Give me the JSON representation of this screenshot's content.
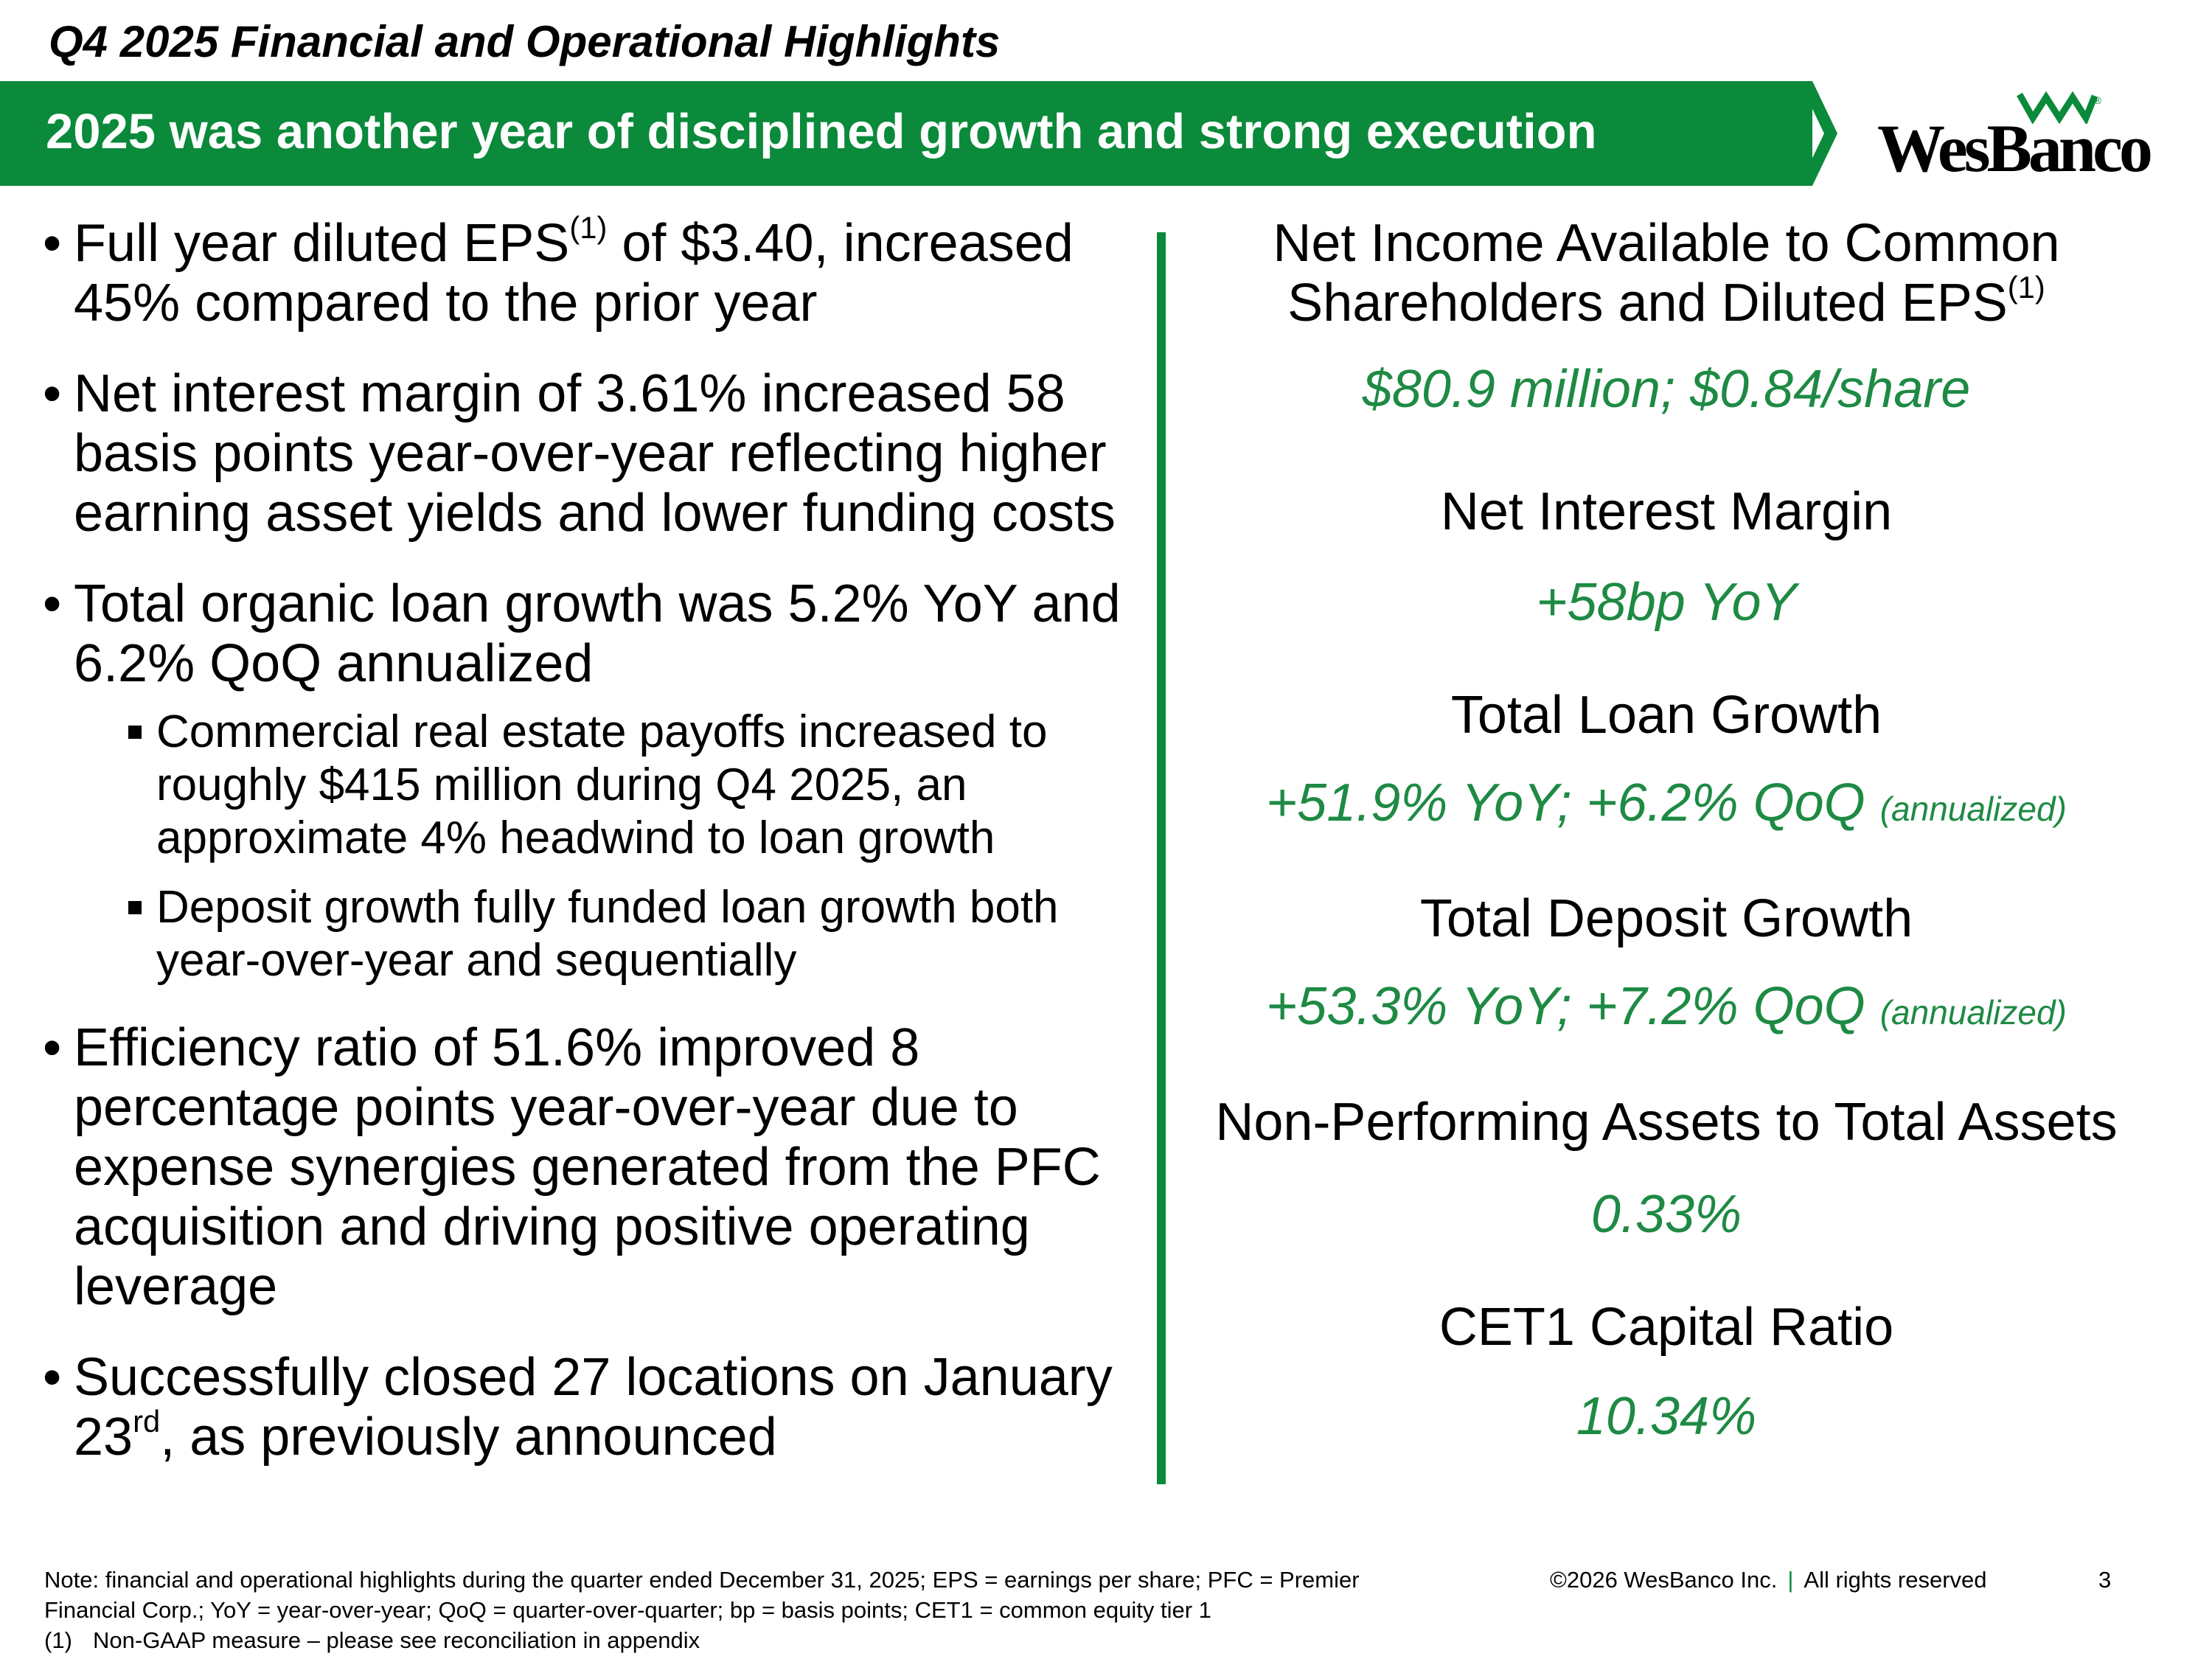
{
  "header": {
    "section_title": "Q4 2025 Financial and Operational Highlights",
    "banner_text": "2025 was another year of disciplined growth and strong execution",
    "logo_text": "WesBanco",
    "logo_registered": "®"
  },
  "colors": {
    "brand_green": "#0a8a3a",
    "value_green": "#1e8a44"
  },
  "left_bullets": {
    "b1": {
      "pre": "Full year diluted EPS",
      "sup": "(1)",
      "post": " of $3.40, increased 45% compared to the prior year"
    },
    "b2": {
      "text": "Net interest margin of 3.61% increased 58 basis points year-over-year reflecting higher earning asset yields and lower funding costs"
    },
    "b3": {
      "text": "Total organic loan growth was 5.2% YoY and 6.2% QoQ annualized"
    },
    "subs": [
      "Commercial real estate payoffs increased to roughly $415 million during Q4 2025, an approximate 4% headwind to loan growth",
      "Deposit growth fully funded loan growth both year-over-year and sequentially"
    ],
    "b4": {
      "text": "Efficiency ratio of 51.6% improved 8 percentage points year-over-year due to expense synergies generated from the PFC acquisition and driving positive operating leverage"
    },
    "b5": {
      "pre": "Successfully closed 27 locations on January 23",
      "sup": "rd",
      "post": ", as previously announced"
    }
  },
  "metrics": {
    "m1": {
      "label_line1": "Net Income Available to Common",
      "label_line2": "Shareholders and Diluted EPS",
      "label_sup": "(1)",
      "value": "$80.9 million; $0.84/share"
    },
    "m2": {
      "label": "Net Interest Margin",
      "value": "+58bp YoY"
    },
    "m3": {
      "label": "Total Loan Growth",
      "value": "+51.9% YoY; +6.2% QoQ",
      "note": "(annualized)"
    },
    "m4": {
      "label": "Total Deposit Growth",
      "value": "+53.3% YoY; +7.2% QoQ",
      "note": "(annualized)"
    },
    "m5": {
      "label": "Non-Performing Assets to Total Assets",
      "value": "0.33%"
    },
    "m6": {
      "label": "CET1 Capital Ratio",
      "value": "10.34%"
    }
  },
  "footer": {
    "note_line1": "Note: financial and operational highlights during the quarter ended December 31, 2025; EPS = earnings per share; PFC = Premier",
    "note_line2": "Financial Corp.; YoY = year-over-year; QoQ = quarter-over-quarter; bp = basis points; CET1 = common equity tier 1",
    "fn_number": "(1)",
    "fn_text": "Non-GAAP measure – please see reconciliation in appendix",
    "copyright": "©2026 WesBanco Inc.",
    "separator": "|",
    "rights": "All rights reserved",
    "page_number": "3"
  }
}
